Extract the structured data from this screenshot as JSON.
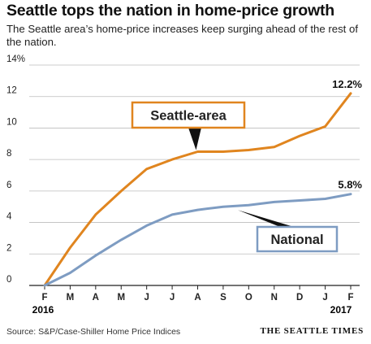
{
  "chart_data": {
    "type": "line",
    "title": "Seattle tops the nation in home-price growth",
    "subtitle": "The Seattle area’s home-price increases keep surging ahead of the rest of the nation.",
    "categories": [
      "F",
      "M",
      "A",
      "M",
      "J",
      "J",
      "A",
      "S",
      "O",
      "N",
      "D",
      "J",
      "F"
    ],
    "year_labels": {
      "start": "2016",
      "end": "2017"
    },
    "ylim": [
      0,
      14
    ],
    "yticks": [
      0,
      2,
      4,
      6,
      8,
      10,
      12,
      14
    ],
    "ytick_labels": [
      "0",
      "2",
      "4",
      "6",
      "8",
      "10",
      "12",
      "14%"
    ],
    "grid": true,
    "series": [
      {
        "name": "Seattle-area",
        "color": "#e0851f",
        "values": [
          0,
          2.4,
          4.5,
          6.0,
          7.4,
          8.0,
          8.5,
          8.5,
          8.6,
          8.8,
          9.5,
          10.1,
          12.2
        ],
        "end_label": "12.2%"
      },
      {
        "name": "National",
        "color": "#7e9cc2",
        "values": [
          0,
          0.8,
          1.9,
          2.9,
          3.8,
          4.5,
          4.8,
          5.0,
          5.1,
          5.3,
          5.4,
          5.5,
          5.8
        ],
        "end_label": "5.8%"
      }
    ]
  },
  "footer": {
    "source": "Source: S&P/Case-Shiller Home Price Indices",
    "credit": "THE SEATTLE TIMES"
  }
}
